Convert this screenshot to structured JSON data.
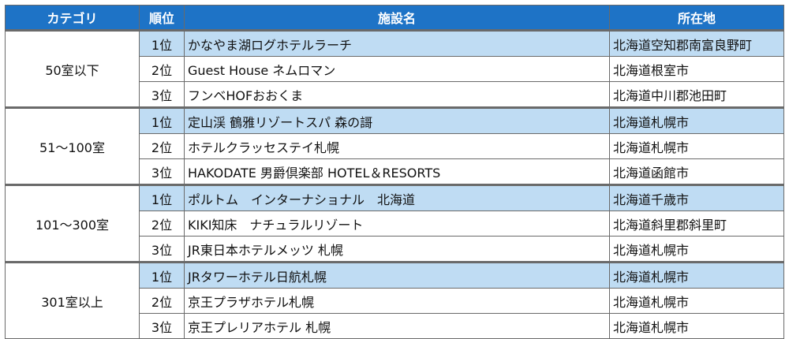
{
  "header": {
    "category": "カテゴリ",
    "rank": "順位",
    "facility": "施設名",
    "location": "所在地"
  },
  "groups": [
    {
      "category": "50室以下",
      "rows": [
        {
          "rank": "1位",
          "name": "かなやま湖ログホテルラーチ",
          "location": "北海道空知郡南富良野町"
        },
        {
          "rank": "2位",
          "name": "Guest House ネムロマン",
          "location": "北海道根室市"
        },
        {
          "rank": "3位",
          "name": "フンベHOFおおくま",
          "location": "北海道中川郡池田町"
        }
      ]
    },
    {
      "category": "51～100室",
      "rows": [
        {
          "rank": "1位",
          "name": "定山渓 鶴雅リゾートスパ 森の謌",
          "location": "北海道札幌市"
        },
        {
          "rank": "2位",
          "name": "ホテルクラッセステイ札幌",
          "location": "北海道札幌市"
        },
        {
          "rank": "3位",
          "name": "HAKODATE 男爵倶楽部 HOTEL＆RESORTS",
          "location": "北海道函館市"
        }
      ]
    },
    {
      "category": "101～300室",
      "rows": [
        {
          "rank": "1位",
          "name": "ポルトム　インターナショナル　北海道",
          "location": "北海道千歳市"
        },
        {
          "rank": "2位",
          "name": "KIKI知床　ナチュラルリゾート",
          "location": "北海道斜里郡斜里町"
        },
        {
          "rank": "3位",
          "name": "JR東日本ホテルメッツ 札幌",
          "location": "北海道札幌市"
        }
      ]
    },
    {
      "category": "301室以上",
      "rows": [
        {
          "rank": "1位",
          "name": "JRタワーホテル日航札幌",
          "location": "北海道札幌市"
        },
        {
          "rank": "2位",
          "name": "京王プラザホテル札幌",
          "location": "北海道札幌市"
        },
        {
          "rank": "3位",
          "name": "京王プレリアホテル 札幌",
          "location": "北海道札幌市"
        }
      ]
    }
  ],
  "colors": {
    "header_bg": "#1e73c6",
    "highlight_row_bg": "#bfdcf3",
    "border": "#6a6a6a"
  }
}
